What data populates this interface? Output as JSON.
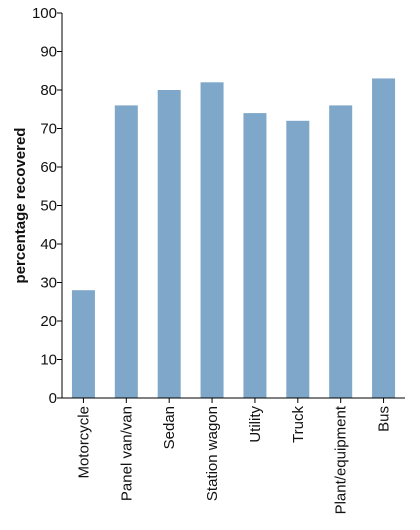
{
  "chart_data": {
    "type": "bar",
    "categories": [
      "Motorcycle",
      "Panel van/van",
      "Sedan",
      "Station wagon",
      "Utility",
      "Truck",
      "Plant/equipment",
      "Bus"
    ],
    "values": [
      28,
      76,
      80,
      82,
      74,
      72,
      76,
      83
    ],
    "ylabel": "percentage recovered",
    "xlabel": "",
    "ylim": [
      0,
      100
    ],
    "yticks": [
      0,
      10,
      20,
      30,
      40,
      50,
      60,
      70,
      80,
      90,
      100
    ],
    "bar_color": "#7ea7c9",
    "grid": false,
    "legend": "none"
  }
}
